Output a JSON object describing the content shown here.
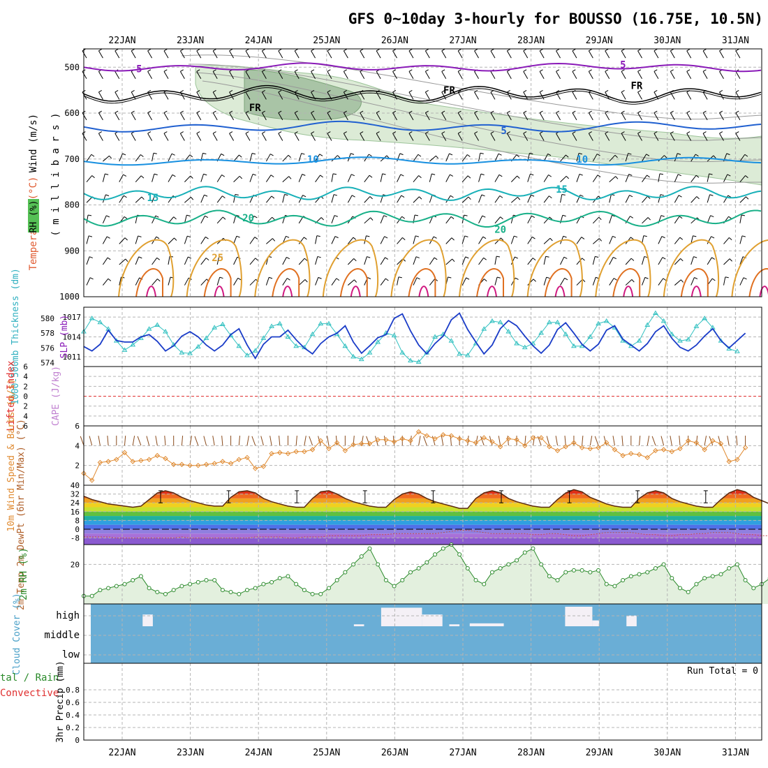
{
  "title": "GFS 0~10day 3-hourly for BOUSSO (16.75E, 10.5N)",
  "date_labels": [
    "22JAN",
    "23JAN",
    "24JAN",
    "25JAN",
    "26JAN",
    "27JAN",
    "28JAN",
    "29JAN",
    "30JAN",
    "31JAN"
  ],
  "colors": {
    "grid": "#b4b4b4",
    "temp_warm": "#e0a030",
    "temp_cool": "#2060d0",
    "thickness": "#1a3cc8",
    "slp": "#30c0c0",
    "wind10m": "#e08a30",
    "rh2m": "#2a8a2a",
    "cloud": "#6aaed6",
    "purple": "#8a1ab8",
    "freezing": "#000000",
    "li_red": "#e03030"
  },
  "chart_data": [
    {
      "type": "heatmap",
      "panel": "upper_air",
      "ylabel_wind": "Wind (m/s)",
      "ylabel_temp": "Temperature (°C)",
      "ylabel_rh": "RH (%)",
      "ylabel_units": "( m i l l i b a r s )",
      "yticks": [
        500,
        600,
        700,
        800,
        900,
        1000
      ],
      "ylim": [
        460,
        1000
      ],
      "contour_labels": [
        {
          "day": 0.25,
          "p": 503,
          "text": "5",
          "color": "#8a1ab8"
        },
        {
          "day": 7.35,
          "p": 494,
          "text": "5",
          "color": "#8a1ab8"
        },
        {
          "day": 4.8,
          "p": 550,
          "text": "FR",
          "color": "#000000"
        },
        {
          "day": 7.55,
          "p": 540,
          "text": "FR",
          "color": "#000000"
        },
        {
          "day": 1.95,
          "p": 588,
          "text": "FR",
          "color": "#000000"
        },
        {
          "day": 5.6,
          "p": 638,
          "text": "5",
          "color": "#2060d0"
        },
        {
          "day": 2.8,
          "p": 700,
          "text": "10",
          "color": "#1890e0"
        },
        {
          "day": 6.75,
          "p": 700,
          "text": "10",
          "color": "#1890e0"
        },
        {
          "day": 0.45,
          "p": 784,
          "text": "15",
          "color": "#18b0b8"
        },
        {
          "day": 6.45,
          "p": 766,
          "text": "15",
          "color": "#18b0b8"
        },
        {
          "day": 1.85,
          "p": 828,
          "text": "20",
          "color": "#18b088"
        },
        {
          "day": 5.55,
          "p": 853,
          "text": "20",
          "color": "#18b088"
        },
        {
          "day": 1.4,
          "p": 915,
          "text": "25",
          "color": "#e0a030"
        }
      ]
    },
    {
      "type": "line",
      "panel": "thickness_slp",
      "ylabel_thickness": "1000-500mb Thickness (dm)",
      "ylabel_slp": "SLP (mb)",
      "thickness_ticks": [
        574,
        576,
        578,
        580
      ],
      "slp_ticks": [
        1011,
        1014,
        1017
      ],
      "series": [
        {
          "name": "thickness",
          "ylim": [
            573.5,
            581.5
          ],
          "values": [
            576.2,
            575.6,
            576.5,
            578.4,
            577.0,
            576.8,
            576.8,
            577.5,
            577.8,
            576.9,
            575.6,
            576.3,
            577.6,
            578.2,
            577.5,
            576.4,
            575.6,
            576.4,
            577.8,
            578.6,
            576.4,
            574.6,
            576.5,
            577.5,
            577.5,
            578.4,
            577.1,
            576.0,
            575.2,
            576.6,
            577.5,
            578.0,
            579.0,
            576.8,
            575.3,
            576.3,
            577.4,
            577.8,
            580.0,
            580.6,
            578.3,
            576.4,
            575.2,
            576.6,
            577.6,
            579.8,
            580.7,
            578.5,
            576.8,
            575.2,
            576.4,
            578.6,
            579.7,
            579.0,
            577.6,
            576.3,
            575.3,
            576.4,
            578.5,
            579.4,
            578.0,
            576.5,
            575.6,
            576.5,
            578.4,
            579.0,
            577.2,
            576.4,
            575.6,
            576.6,
            578.2,
            579.0,
            577.3,
            576.1,
            575.6,
            576.4,
            577.6,
            578.6,
            577.0,
            576.0,
            577.0,
            578.0
          ]
        },
        {
          "name": "slp",
          "ylim": [
            1009.5,
            1018.5
          ],
          "values": [
            1014.8,
            1016.8,
            1016.2,
            1015.2,
            1013.4,
            1012.0,
            1012.8,
            1013.8,
            1015.2,
            1015.8,
            1014.8,
            1012.8,
            1011.6,
            1011.5,
            1012.5,
            1013.8,
            1015.4,
            1015.9,
            1014.2,
            1012.6,
            1011.2,
            1011.9,
            1013.8,
            1015.6,
            1016.0,
            1014.0,
            1012.6,
            1012.4,
            1014.4,
            1016.0,
            1016.0,
            1014.4,
            1012.6,
            1011.0,
            1010.6,
            1011.6,
            1013.2,
            1014.6,
            1014.2,
            1011.6,
            1010.4,
            1010.2,
            1011.6,
            1014.0,
            1014.4,
            1013.4,
            1011.4,
            1011.2,
            1013.0,
            1015.2,
            1016.4,
            1016.2,
            1014.8,
            1013.0,
            1012.4,
            1013.0,
            1014.6,
            1016.2,
            1016.2,
            1014.4,
            1012.6,
            1012.6,
            1014.0,
            1016.0,
            1016.4,
            1015.4,
            1013.4,
            1012.6,
            1013.4,
            1015.8,
            1017.6,
            1016.4,
            1014.4,
            1013.4,
            1013.6,
            1015.6,
            1016.8,
            1015.4,
            1013.4,
            1012.2,
            1011.8
          ]
        }
      ]
    },
    {
      "type": "line",
      "panel": "stability",
      "ylabel_li": "Lifted Index",
      "ylabel_cape": "CAPE (J/kg)",
      "yticks": [
        "6",
        "4",
        "2",
        "0",
        "2",
        "4",
        "6"
      ],
      "ylim": [
        -6,
        6
      ],
      "values": []
    },
    {
      "type": "line",
      "panel": "wind10m",
      "ylabel": "10m Wind Speed & Barbs (m/s)",
      "yticks": [
        2,
        4,
        6
      ],
      "ylim": [
        0,
        6
      ],
      "values": [
        1.2,
        0.5,
        2.3,
        2.4,
        2.6,
        3.3,
        2.4,
        2.5,
        2.6,
        3.0,
        2.7,
        2.1,
        2.1,
        2.0,
        2.0,
        2.1,
        2.2,
        2.4,
        2.2,
        2.6,
        2.8,
        1.7,
        1.9,
        3.2,
        3.3,
        3.2,
        3.4,
        3.4,
        3.6,
        4.5,
        3.7,
        4.3,
        3.5,
        4.1,
        4.2,
        4.2,
        4.6,
        4.6,
        4.4,
        4.7,
        4.5,
        5.4,
        5.0,
        4.7,
        5.1,
        5.0,
        4.7,
        4.5,
        4.3,
        4.8,
        4.4,
        3.9,
        4.7,
        4.6,
        4.0,
        4.8,
        4.8,
        3.9,
        3.5,
        3.9,
        4.3,
        3.8,
        3.7,
        3.8,
        4.3,
        3.6,
        3.0,
        3.2,
        3.1,
        2.8,
        3.5,
        3.6,
        3.4,
        3.7,
        4.5,
        4.3,
        3.6,
        4.5,
        4.2,
        2.4,
        2.6,
        3.8
      ]
    },
    {
      "type": "area",
      "panel": "temperature",
      "ylabel": "2m Temp 2m DewPt (6hr Min/Max) (°C)",
      "yticks": [
        40,
        32,
        24,
        16,
        8,
        0,
        -8
      ],
      "ylim": [
        -14,
        40
      ],
      "series": [
        {
          "name": "temp",
          "values": [
            30,
            27,
            25,
            23,
            22,
            21,
            20,
            21,
            27,
            33,
            35,
            33,
            29,
            26,
            24,
            22,
            21,
            21,
            29,
            34,
            35,
            33,
            28,
            25,
            23,
            21,
            20,
            20,
            28,
            34,
            35,
            32,
            28,
            25,
            23,
            21,
            20,
            20,
            27,
            32,
            34,
            32,
            28,
            25,
            23,
            21,
            19,
            19,
            28,
            33,
            35,
            33,
            28,
            25,
            23,
            21,
            20,
            20,
            27,
            33,
            36,
            34,
            29,
            26,
            23,
            21,
            20,
            20,
            28,
            33,
            35,
            33,
            28,
            25,
            23,
            21,
            20,
            20,
            27,
            33,
            36,
            34,
            29,
            26,
            23,
            22,
            20,
            20
          ]
        },
        {
          "name": "dewpoint",
          "values": [
            -7,
            -7,
            -7,
            -7,
            -8,
            -8,
            -8,
            -8,
            -8,
            -8,
            -8,
            -8,
            -7,
            -8,
            -8,
            -8,
            -8,
            -8,
            -8,
            -8,
            -8,
            -7,
            -7,
            -7,
            -7,
            -8,
            -8,
            -7,
            -7,
            -7,
            -6,
            -6,
            -6,
            -6,
            -6,
            -5,
            -5,
            -5,
            -4,
            -4,
            -4,
            -4,
            -4,
            -4,
            -3,
            -2,
            -1,
            -1,
            -2,
            -3,
            -4,
            -4,
            -4,
            -4,
            -4,
            -5,
            -5,
            -4,
            -4,
            -5,
            -6,
            -6,
            -5,
            -4,
            -3,
            -3,
            -3,
            -3,
            -4,
            -5,
            -5,
            -6,
            -6,
            -5,
            -5,
            -4,
            -4,
            -3,
            -3,
            -3,
            -4,
            -5,
            -5,
            -6,
            -6,
            -6,
            -7,
            -7
          ]
        }
      ]
    },
    {
      "type": "area",
      "panel": "rh2m",
      "ylabel": "2m RH (%)",
      "yticks": [
        20
      ],
      "ylim": [
        0,
        30
      ],
      "values": [
        4,
        4,
        7,
        8,
        9,
        10,
        12,
        14,
        8,
        6,
        5,
        7,
        9,
        10,
        11,
        12,
        12,
        7,
        6,
        5,
        7,
        8,
        10,
        11,
        13,
        14,
        10,
        7,
        5,
        5,
        8,
        12,
        16,
        20,
        24,
        28,
        20,
        12,
        9,
        12,
        16,
        18,
        21,
        25,
        28,
        30,
        25,
        18,
        12,
        10,
        16,
        18,
        20,
        22,
        26,
        28,
        20,
        14,
        12,
        16,
        17,
        17,
        16,
        17,
        10,
        9,
        12,
        14,
        15,
        16,
        18,
        20,
        13,
        8,
        6,
        10,
        13,
        14,
        15,
        18,
        20,
        12,
        8,
        10,
        13,
        15,
        17,
        18
      ]
    },
    {
      "type": "heatmap",
      "panel": "cloud",
      "ylabel": "Cloud Cover (%)",
      "levels": [
        "high",
        "middle",
        "low"
      ],
      "high_blocks": [
        [
          0.3,
          0.45,
          0.6
        ],
        [
          3.4,
          3.55,
          0.1
        ],
        [
          3.8,
          4.4,
          0.95
        ],
        [
          4.4,
          4.7,
          0.6
        ],
        [
          4.8,
          4.95,
          0.1
        ],
        [
          5.1,
          5.6,
          0.15
        ],
        [
          6.5,
          6.9,
          1.0
        ],
        [
          6.9,
          7.0,
          0.3
        ],
        [
          7.4,
          7.55,
          0.55
        ]
      ]
    },
    {
      "type": "bar",
      "panel": "precip",
      "ylabel": "3hr Precip (mm)",
      "legend_left": "tal / Rain",
      "legend_left2": "Convective",
      "yticks": [
        "0",
        "0.2",
        "0.4",
        "0.6",
        "0.8"
      ],
      "ylim": [
        0,
        1.0
      ],
      "values": [],
      "run_total": "Run Total = 0"
    }
  ]
}
